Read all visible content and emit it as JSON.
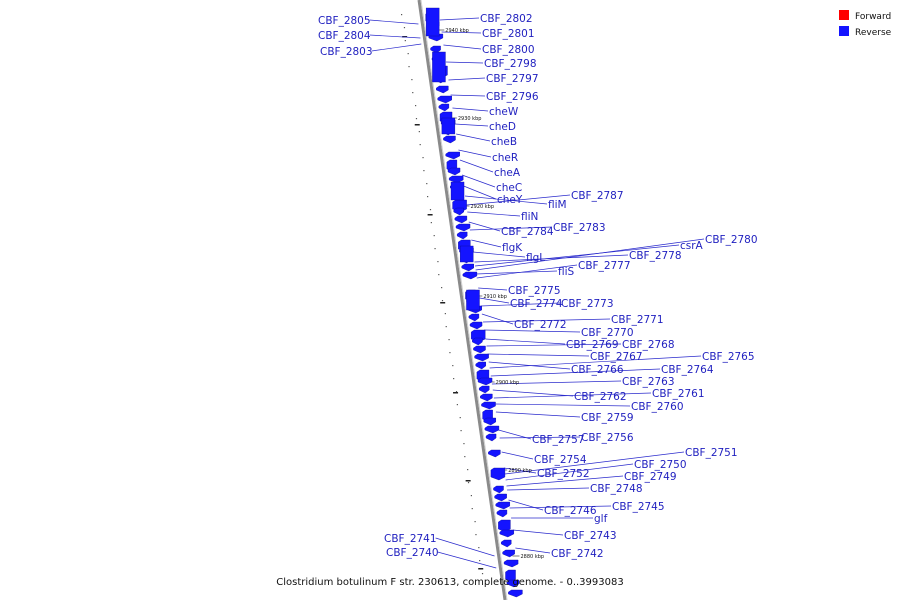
{
  "legend": {
    "forward": "Forward",
    "reverse": "Reverse",
    "forward_color": "#ff0000",
    "reverse_color": "#1414ff"
  },
  "caption": "Clostridium botulinum F str. 230613, complete genome. - 0..3993083",
  "ticks": [
    "2940 kbp",
    "2930 kbp",
    "2920 kbp",
    "2910 kbp",
    "2900 kbp",
    "2890 kbp",
    "2880 kbp"
  ],
  "genes_right": [
    "CBF_2802",
    "CBF_2801",
    "CBF_2800",
    "CBF_2798",
    "CBF_2797",
    "CBF_2796",
    "cheW",
    "cheD",
    "cheB",
    "cheR",
    "cheA",
    "cheC",
    "cheY",
    "fliM",
    "CBF_2787",
    "fliN",
    "CBF_2784",
    "CBF_2783",
    "flgK",
    "flgL",
    "CBF_2778",
    "csrA",
    "CBF_2780",
    "fliS",
    "CBF_2777",
    "CBF_2775",
    "CBF_2774",
    "CBF_2773",
    "CBF_2772",
    "CBF_2771",
    "CBF_2770",
    "CBF_2769",
    "CBF_2768",
    "CBF_2767",
    "CBF_2766",
    "CBF_2765",
    "CBF_2764",
    "CBF_2763",
    "CBF_2762",
    "CBF_2761",
    "CBF_2760",
    "CBF_2759",
    "CBF_2757",
    "CBF_2756",
    "CBF_2754",
    "CBF_2752",
    "CBF_2751",
    "CBF_2750",
    "CBF_2749",
    "CBF_2748",
    "CBF_2746",
    "CBF_2745",
    "glf",
    "CBF_2743",
    "CBF_2742"
  ],
  "genes_left": [
    "CBF_2805",
    "CBF_2804",
    "CBF_2803",
    "CBF_2741",
    "CBF_2740"
  ]
}
